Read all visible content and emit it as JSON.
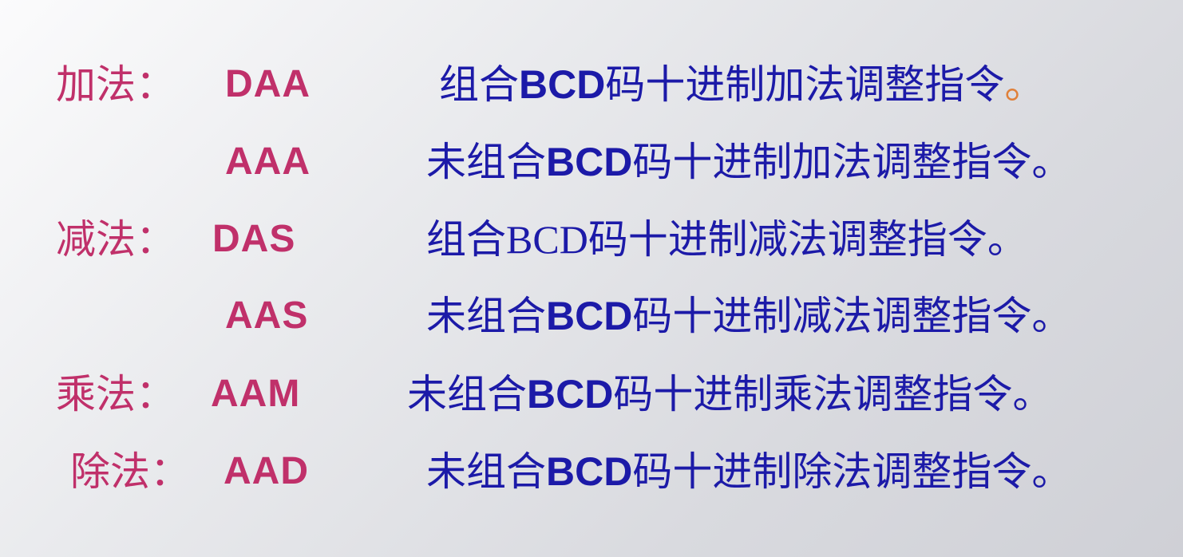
{
  "rows": [
    {
      "op": "加法：",
      "mnemonic": "DAA",
      "prefix": "组合",
      "bcd": "BCD",
      "suffix": "码十进制加法调整指令",
      "end": "。"
    },
    {
      "op": "",
      "mnemonic": "AAA",
      "prefix": "未组合",
      "bcd": "BCD",
      "suffix": "码十进制加法调整指令",
      "end": "。"
    },
    {
      "op": "减法：",
      "mnemonic": "DAS",
      "prefix": "组合",
      "bcd": "BCD",
      "suffix": "码十进制减法调整指令",
      "end": "。"
    },
    {
      "op": "",
      "mnemonic": "AAS",
      "prefix": "未组合",
      "bcd": "BCD",
      "suffix": "码十进制减法调整指令",
      "end": "。"
    },
    {
      "op": "乘法：",
      "mnemonic": "AAM",
      "prefix": "未组合",
      "bcd": "BCD",
      "suffix": "码十进制乘法调整指令",
      "end": "。"
    },
    {
      "op": "除法：",
      "mnemonic": "AAD",
      "prefix": "未组合",
      "bcd": "BCD",
      "suffix": "码十进制除法调整指令",
      "end": "。"
    }
  ],
  "colors": {
    "label": "#c0306a",
    "description": "#1c1aa8",
    "accent_period": "#e0803a",
    "background": "#e4e5e8"
  }
}
